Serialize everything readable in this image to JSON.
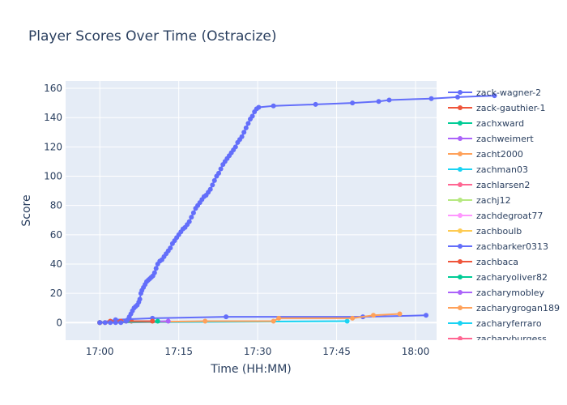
{
  "chart_data": {
    "type": "line",
    "title": "Player Scores Over Time (Ostracize)",
    "xlabel": "Time (HH:MM)",
    "ylabel": "Score",
    "x_ticks": [
      "17:00",
      "17:15",
      "17:30",
      "17:45",
      "18:00"
    ],
    "x_tick_minutes": [
      0,
      15,
      30,
      45,
      60
    ],
    "x_range_minutes": [
      -6.5,
      64
    ],
    "y_ticks": [
      0,
      20,
      40,
      60,
      80,
      100,
      120,
      140,
      160
    ],
    "ylim": [
      -12,
      165
    ],
    "grid": true,
    "legend_position": "right",
    "series": [
      {
        "name": "zack-wagner-2",
        "color": "#636efa",
        "points": [
          [
            0,
            0
          ],
          [
            1,
            0
          ],
          [
            2,
            0
          ],
          [
            3,
            0
          ],
          [
            4,
            0
          ],
          [
            5,
            1
          ],
          [
            5.3,
            2
          ],
          [
            5.6,
            4
          ],
          [
            5.9,
            6
          ],
          [
            6.2,
            8
          ],
          [
            6.5,
            10
          ],
          [
            6.8,
            11
          ],
          [
            7.1,
            12
          ],
          [
            7.4,
            14
          ],
          [
            7.6,
            16
          ],
          [
            7.8,
            20
          ],
          [
            8.0,
            22
          ],
          [
            8.3,
            24
          ],
          [
            8.6,
            26
          ],
          [
            8.9,
            28
          ],
          [
            9.2,
            29
          ],
          [
            9.5,
            30
          ],
          [
            9.8,
            31
          ],
          [
            10.1,
            32
          ],
          [
            10.4,
            34
          ],
          [
            10.7,
            37
          ],
          [
            11.0,
            40
          ],
          [
            11.4,
            42
          ],
          [
            11.8,
            43
          ],
          [
            12.2,
            45
          ],
          [
            12.6,
            47
          ],
          [
            13.0,
            49
          ],
          [
            13.4,
            51
          ],
          [
            13.8,
            54
          ],
          [
            14.2,
            56
          ],
          [
            14.6,
            58
          ],
          [
            15.0,
            60
          ],
          [
            15.4,
            62
          ],
          [
            15.8,
            64
          ],
          [
            16.2,
            65
          ],
          [
            16.6,
            67
          ],
          [
            17.0,
            69
          ],
          [
            17.4,
            72
          ],
          [
            17.8,
            75
          ],
          [
            18.2,
            78
          ],
          [
            18.6,
            80
          ],
          [
            19.0,
            82
          ],
          [
            19.4,
            84
          ],
          [
            19.8,
            86
          ],
          [
            20.2,
            87
          ],
          [
            20.6,
            89
          ],
          [
            21.0,
            91
          ],
          [
            21.4,
            94
          ],
          [
            21.8,
            97
          ],
          [
            22.2,
            100
          ],
          [
            22.6,
            102
          ],
          [
            23.0,
            105
          ],
          [
            23.4,
            108
          ],
          [
            23.8,
            110
          ],
          [
            24.2,
            112
          ],
          [
            24.6,
            114
          ],
          [
            25.0,
            116
          ],
          [
            25.4,
            118
          ],
          [
            25.8,
            120
          ],
          [
            26.2,
            123
          ],
          [
            26.6,
            125
          ],
          [
            27.0,
            127
          ],
          [
            27.4,
            130
          ],
          [
            27.8,
            133
          ],
          [
            28.2,
            136
          ],
          [
            28.6,
            139
          ],
          [
            29.0,
            141
          ],
          [
            29.4,
            144
          ],
          [
            29.8,
            146
          ],
          [
            30.2,
            147
          ],
          [
            33,
            148
          ],
          [
            41,
            149
          ],
          [
            48,
            150
          ],
          [
            53,
            151
          ],
          [
            55,
            152
          ],
          [
            63,
            153
          ],
          [
            68,
            154
          ],
          [
            75,
            155
          ]
        ]
      },
      {
        "name": "zack-gauthier-1",
        "color": "#EF553B",
        "points": [
          [
            0,
            0
          ],
          [
            1,
            0
          ],
          [
            2,
            1
          ],
          [
            4,
            1
          ],
          [
            5,
            1
          ],
          [
            10,
            1
          ]
        ]
      },
      {
        "name": "zachxward",
        "color": "#00cc96",
        "points": [
          [
            0,
            0
          ],
          [
            11,
            1
          ]
        ]
      },
      {
        "name": "zachweimert",
        "color": "#ab63fa",
        "points": [
          [
            0,
            0
          ],
          [
            13,
            1
          ]
        ]
      },
      {
        "name": "zacht2000",
        "color": "#FFA15A",
        "points": [
          [
            0,
            0
          ],
          [
            20,
            1
          ],
          [
            33,
            1
          ],
          [
            34,
            3
          ],
          [
            48,
            3
          ],
          [
            52,
            5
          ],
          [
            57,
            6
          ]
        ]
      },
      {
        "name": "zachman03",
        "color": "#19d3f3",
        "points": [
          [
            0,
            0
          ],
          [
            47,
            1
          ]
        ]
      },
      {
        "name": "zachlarsen2",
        "color": "#FF6692",
        "points": [
          [
            0,
            0
          ]
        ]
      },
      {
        "name": "zachj12",
        "color": "#B6E880",
        "points": [
          [
            0,
            0
          ]
        ]
      },
      {
        "name": "zachdegroat77",
        "color": "#FF97FF",
        "points": [
          [
            0,
            0
          ]
        ]
      },
      {
        "name": "zachboulb",
        "color": "#FECB52",
        "points": [
          [
            0,
            0
          ]
        ]
      },
      {
        "name": "zachbarker0313",
        "color": "#636efa",
        "points": [
          [
            0,
            0
          ],
          [
            3,
            2
          ],
          [
            10,
            3
          ],
          [
            24,
            4
          ],
          [
            50,
            4
          ],
          [
            62,
            5
          ]
        ]
      },
      {
        "name": "zachbaca",
        "color": "#EF553B",
        "points": [
          [
            0,
            0
          ],
          [
            6,
            1
          ]
        ]
      },
      {
        "name": "zacharyoliver82",
        "color": "#00cc96",
        "points": [
          [
            0,
            0
          ]
        ]
      },
      {
        "name": "zacharymobley",
        "color": "#ab63fa",
        "points": [
          [
            0,
            0
          ]
        ]
      },
      {
        "name": "zacharygrogan189",
        "color": "#FFA15A",
        "points": [
          [
            0,
            0
          ]
        ]
      },
      {
        "name": "zacharyferraro",
        "color": "#19d3f3",
        "points": [
          [
            0,
            0
          ]
        ]
      },
      {
        "name": "zacharyburgess",
        "color": "#FF6692",
        "points": [
          [
            0,
            0
          ]
        ]
      }
    ]
  }
}
